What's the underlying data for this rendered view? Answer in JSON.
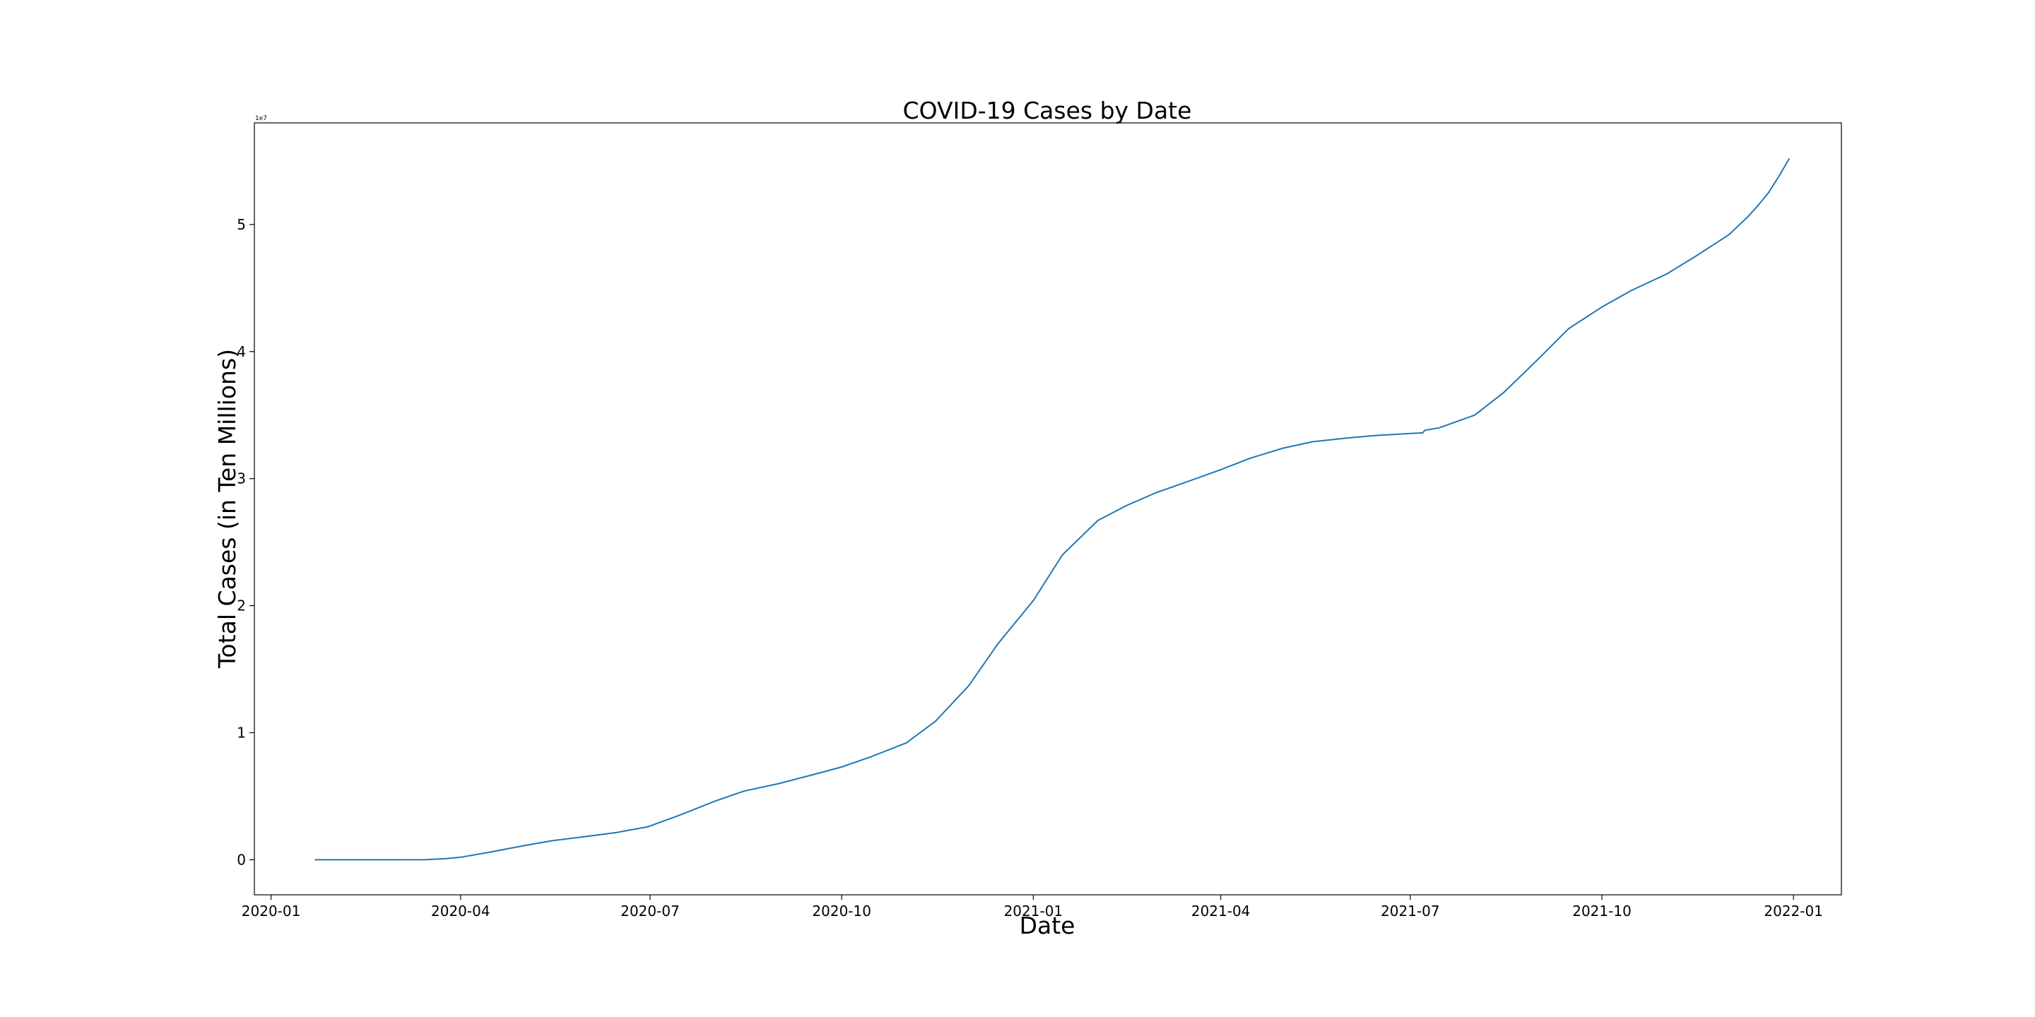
{
  "chart_data": {
    "type": "line",
    "title": "COVID-19 Cases by Date",
    "xlabel": "Date",
    "ylabel": "Total Cases (in Ten Millions)",
    "y_offset_label": "1e7",
    "xlim": [
      "2019-12-24",
      "2022-01-24"
    ],
    "ylim": [
      -2760000,
      58000000
    ],
    "x_ticks": [
      "2020-01",
      "2020-04",
      "2020-07",
      "2020-10",
      "2021-01",
      "2021-04",
      "2021-07",
      "2021-10",
      "2022-01"
    ],
    "y_ticks": [
      0,
      1,
      2,
      3,
      4,
      5
    ],
    "grid": false,
    "legend": "none",
    "series": [
      {
        "color": "#1f77b4",
        "x": [
          "2020-01-22",
          "2020-02-01",
          "2020-02-15",
          "2020-03-01",
          "2020-03-15",
          "2020-03-25",
          "2020-04-01",
          "2020-04-15",
          "2020-05-01",
          "2020-05-15",
          "2020-06-01",
          "2020-06-15",
          "2020-06-30",
          "2020-07-15",
          "2020-08-01",
          "2020-08-15",
          "2020-09-01",
          "2020-09-15",
          "2020-10-01",
          "2020-10-15",
          "2020-11-01",
          "2020-11-15",
          "2020-12-01",
          "2020-12-15",
          "2021-01-01",
          "2021-01-15",
          "2021-02-01",
          "2021-02-15",
          "2021-03-01",
          "2021-03-15",
          "2021-04-01",
          "2021-04-15",
          "2021-05-01",
          "2021-05-15",
          "2021-06-01",
          "2021-06-15",
          "2021-07-01",
          "2021-07-07",
          "2021-07-08",
          "2021-07-15",
          "2021-08-01",
          "2021-08-15",
          "2021-09-01",
          "2021-09-15",
          "2021-10-01",
          "2021-10-15",
          "2021-11-01",
          "2021-11-15",
          "2021-12-01",
          "2021-12-10",
          "2021-12-15",
          "2021-12-20",
          "2021-12-25",
          "2021-12-30"
        ],
        "y": [
          1,
          8,
          15,
          30,
          3500,
          90000,
          200000,
          600000,
          1100000,
          1500000,
          1850000,
          2150000,
          2600000,
          3500000,
          4600000,
          5400000,
          6000000,
          6600000,
          7300000,
          8100000,
          9200000,
          10900000,
          13700000,
          17000000,
          20400000,
          24000000,
          26700000,
          27900000,
          28900000,
          29700000,
          30700000,
          31600000,
          32400000,
          32900000,
          33200000,
          33400000,
          33550000,
          33600000,
          33800000,
          34000000,
          35000000,
          36800000,
          39500000,
          41800000,
          43500000,
          44800000,
          46100000,
          47500000,
          49200000,
          50600000,
          51500000,
          52500000,
          53800000,
          55200000
        ]
      }
    ]
  }
}
